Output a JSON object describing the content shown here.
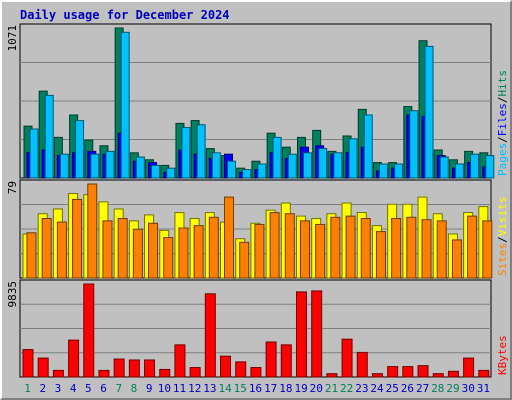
{
  "title": "Daily usage for December 2024",
  "colors": {
    "hits": "#00805c",
    "files": "#0000ff",
    "pages": "#00c0ff",
    "visits": "#ffff00",
    "sites": "#ff8000",
    "kbytes": "#ff0000",
    "plot_bg": "#c0c0c0",
    "grid": "#808080",
    "weekday_tick": "#0000c0",
    "weekend_tick": "#00805c",
    "slash": "#000000"
  },
  "legend": {
    "panel1": [
      "Pages",
      "/",
      "Files",
      "/",
      "Hits"
    ],
    "panel2": [
      "Sites",
      "/",
      "Visits"
    ],
    "panel3": [
      "KBytes"
    ]
  },
  "chart_data": {
    "type": "bar",
    "title": "Daily usage for December 2024",
    "categories": [
      "1",
      "2",
      "3",
      "4",
      "5",
      "6",
      "7",
      "8",
      "9",
      "10",
      "11",
      "12",
      "13",
      "14",
      "15",
      "16",
      "17",
      "18",
      "19",
      "20",
      "21",
      "22",
      "23",
      "24",
      "25",
      "26",
      "27",
      "28",
      "29",
      "30",
      "31"
    ],
    "weekend_days": [
      "1",
      "7",
      "8",
      "14",
      "15",
      "21",
      "22",
      "28",
      "29"
    ],
    "panels": [
      {
        "name": "top",
        "ymax_label": "1071",
        "ymax": 1071,
        "series": [
          {
            "name": "Hits",
            "values": [
              370,
              620,
              290,
              450,
              270,
              230,
              1071,
              180,
              130,
              90,
              390,
              410,
              210,
              160,
              70,
              120,
              320,
              220,
              290,
              340,
              190,
              300,
              490,
              110,
              110,
              510,
              980,
              200,
              130,
              190,
              180
            ]
          },
          {
            "name": "Files",
            "values": [
              180,
              200,
              160,
              180,
              190,
              170,
              320,
              120,
              110,
              40,
              200,
              170,
              140,
              170,
              40,
              60,
              180,
              140,
              220,
              230,
              170,
              180,
              220,
              50,
              70,
              450,
              440,
              160,
              70,
              110,
              80
            ]
          },
          {
            "name": "Pages",
            "values": [
              350,
              590,
              170,
              410,
              170,
              190,
              1040,
              150,
              90,
              70,
              360,
              380,
              180,
              120,
              60,
              100,
              290,
              170,
              180,
              210,
              180,
              280,
              450,
              100,
              100,
              480,
              940,
              150,
              100,
              170,
              160
            ]
          }
        ]
      },
      {
        "name": "middle",
        "ymax_label": "79",
        "ymax": 79,
        "series": [
          {
            "name": "Visits",
            "values": [
              37,
              54,
              58,
              71,
              70,
              64,
              58,
              48,
              53,
              40,
              55,
              50,
              55,
              47,
              33,
              46,
              57,
              63,
              52,
              50,
              54,
              63,
              55,
              44,
              62,
              62,
              68,
              54,
              37,
              55,
              60
            ]
          },
          {
            "name": "Sites",
            "values": [
              38,
              50,
              47,
              66,
              79,
              48,
              50,
              41,
              46,
              34,
              42,
              44,
              51,
              68,
              30,
              45,
              55,
              54,
              48,
              45,
              51,
              52,
              50,
              39,
              50,
              51,
              49,
              48,
              32,
              52,
              48
            ]
          }
        ]
      },
      {
        "name": "bottom",
        "ymax_label": "9835",
        "ymax": 9835,
        "series": [
          {
            "name": "KBytes",
            "values": [
              2900,
              2000,
              700,
              3900,
              9835,
              700,
              1900,
              1800,
              1800,
              800,
              3400,
              1000,
              8800,
              2200,
              1600,
              1000,
              3700,
              3400,
              9000,
              9100,
              350,
              4000,
              2600,
              350,
              1100,
              1100,
              1200,
              350,
              600,
              2000,
              700
            ]
          }
        ]
      }
    ]
  }
}
